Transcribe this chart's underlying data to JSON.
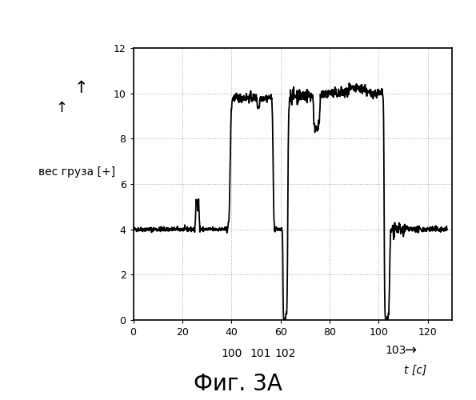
{
  "title": "Фиг. 3А",
  "ylabel_line1": "вес груза [+]",
  "xlim": [
    0,
    130
  ],
  "ylim": [
    0,
    12
  ],
  "xticks": [
    0,
    20,
    40,
    60,
    80,
    100,
    120
  ],
  "yticks": [
    0,
    2,
    4,
    6,
    8,
    10,
    12
  ],
  "background_color": "#ffffff",
  "line_color": "#000000",
  "grid_color": "#999999",
  "figsize": [
    5.95,
    5.0
  ],
  "dpi": 100
}
